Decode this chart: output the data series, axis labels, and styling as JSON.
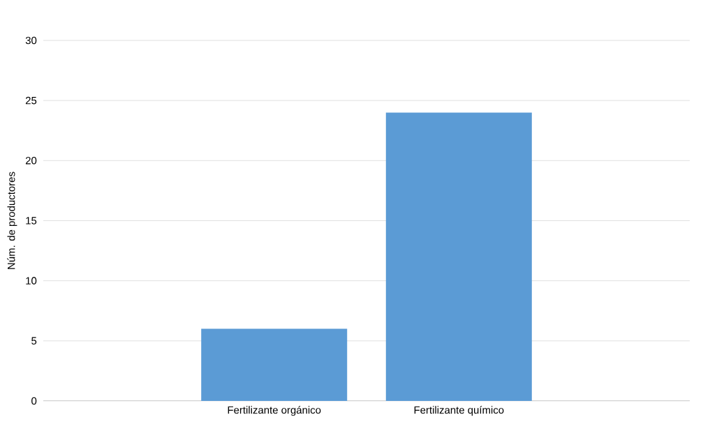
{
  "chart_data": {
    "type": "bar",
    "ylabel": "Núm. de productores",
    "categories": [
      "Fertilizante orgánico",
      "Fertilizante químico"
    ],
    "values": [
      6,
      24
    ],
    "color": "#5b9bd5",
    "ylim": [
      0,
      30
    ],
    "yticks": [
      0,
      5,
      10,
      15,
      20,
      25,
      30
    ],
    "grid": "y"
  }
}
